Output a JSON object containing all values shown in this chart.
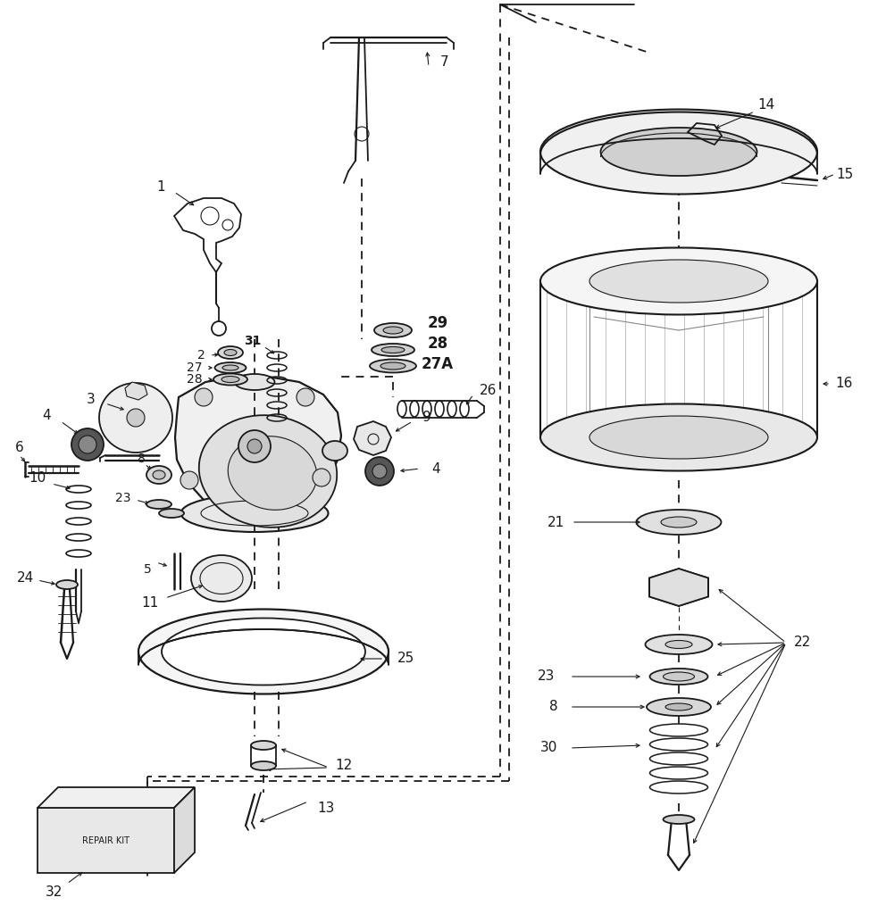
{
  "bg_color": "#ffffff",
  "line_color": "#1a1a1a",
  "fig_width": 9.92,
  "fig_height": 10.24,
  "dpi": 100,
  "lw_main": 1.3,
  "lw_thin": 0.8,
  "lw_thick": 1.8,
  "dash_pattern": [
    5,
    4
  ]
}
